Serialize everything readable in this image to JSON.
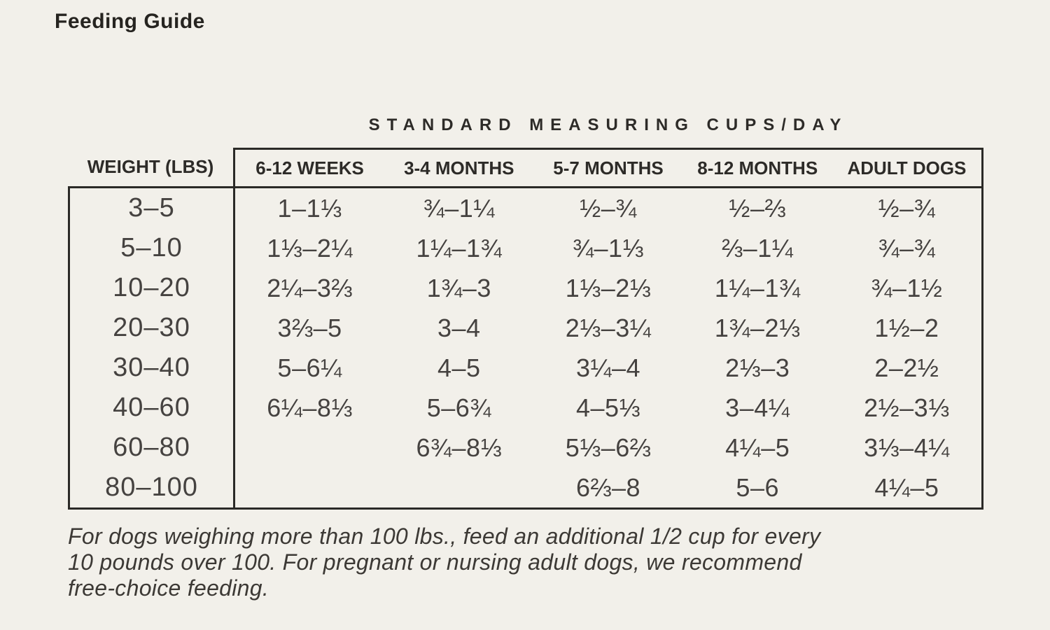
{
  "page": {
    "title": "Feeding Guide",
    "background_color": "#f2f0ea",
    "border_color": "#2b2a27",
    "text_color": "#2d2b28"
  },
  "table": {
    "caption": "STANDARD MEASURING CUPS/DAY",
    "columns": [
      "WEIGHT (LBS)",
      "6-12 WEEKS",
      "3-4 MONTHS",
      "5-7 MONTHS",
      "8-12 MONTHS",
      "ADULT DOGS"
    ],
    "rows": [
      {
        "weight": "3–5",
        "values": [
          "1–1⅓",
          "¾–1¼",
          "½–¾",
          "½–⅔",
          "½–¾"
        ]
      },
      {
        "weight": "5–10",
        "values": [
          "1⅓–2¼",
          "1¼–1¾",
          "¾–1⅓",
          "⅔–1¼",
          "¾–¾"
        ]
      },
      {
        "weight": "10–20",
        "values": [
          "2¼–3⅔",
          "1¾–3",
          "1⅓–2⅓",
          "1¼–1¾",
          "¾–1½"
        ]
      },
      {
        "weight": "20–30",
        "values": [
          "3⅔–5",
          "3–4",
          "2⅓–3¼",
          "1¾–2⅓",
          "1½–2"
        ]
      },
      {
        "weight": "30–40",
        "values": [
          "5–6¼",
          "4–5",
          "3¼–4",
          "2⅓–3",
          "2–2½"
        ]
      },
      {
        "weight": "40–60",
        "values": [
          "6¼–8⅓",
          "5–6¾",
          "4–5⅓",
          "3–4¼",
          "2½–3⅓"
        ]
      },
      {
        "weight": "60–80",
        "values": [
          "",
          "6¾–8⅓",
          "5⅓–6⅔",
          "4¼–5",
          "3⅓–4¼"
        ]
      },
      {
        "weight": "80–100",
        "values": [
          "",
          "",
          "6⅔–8",
          "5–6",
          "4¼–5"
        ]
      }
    ]
  },
  "footnote": {
    "lines": [
      "For dogs weighing more than 100 lbs., feed an additional 1/2 cup for every",
      "10 pounds over 100. For pregnant or nursing adult dogs, we recommend",
      "free-choice feeding."
    ]
  }
}
